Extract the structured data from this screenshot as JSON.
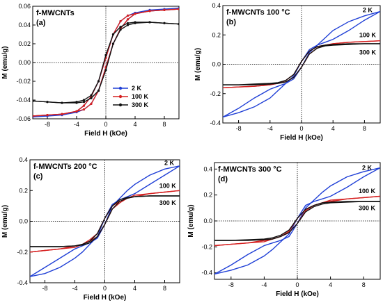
{
  "chart_data": [
    {
      "type": "line",
      "title": "f-MWCNTs",
      "panel_label": "(a)",
      "xlabel": "Field H (kOe)",
      "ylabel": "M (emu/g)",
      "xlim": [
        -10,
        10
      ],
      "ylim": [
        -0.06,
        0.06
      ],
      "xticks": [
        -8,
        -4,
        0,
        4,
        8
      ],
      "yticks": [
        -0.06,
        -0.04,
        -0.02,
        0.0,
        0.02,
        0.04,
        0.06
      ],
      "ytick_labels": [
        "-0.06",
        "-0.04",
        "-0.02",
        "0.00",
        "0.02",
        "0.04",
        "0.06"
      ],
      "legend": {
        "placement": "bottom-right",
        "entries": [
          "2 K",
          "100 K",
          "300 K"
        ]
      },
      "series": [
        {
          "name": "2 K",
          "color": "#1f3fd6",
          "x": [
            -10,
            -8,
            -6,
            -4,
            -3,
            -2,
            -1,
            0,
            1,
            2,
            3,
            4,
            6,
            8,
            10
          ],
          "y_up": [
            -0.058,
            -0.057,
            -0.056,
            -0.053,
            -0.05,
            -0.044,
            -0.03,
            -0.005,
            0.02,
            0.036,
            0.046,
            0.052,
            0.055,
            0.056,
            0.057
          ],
          "y_down": [
            -0.057,
            -0.056,
            -0.055,
            -0.052,
            -0.046,
            -0.036,
            -0.02,
            0.005,
            0.03,
            0.044,
            0.05,
            0.053,
            0.056,
            0.057,
            0.058
          ]
        },
        {
          "name": "100 K",
          "color": "#d62020",
          "x": [
            -10,
            -8,
            -6,
            -4,
            -3,
            -2,
            -1,
            0,
            1,
            2,
            3,
            4,
            6,
            8,
            10
          ],
          "y_up": [
            -0.057,
            -0.056,
            -0.055,
            -0.052,
            -0.05,
            -0.044,
            -0.03,
            -0.005,
            0.02,
            0.036,
            0.046,
            0.052,
            0.055,
            0.056,
            0.057
          ],
          "y_down": [
            -0.057,
            -0.056,
            -0.055,
            -0.052,
            -0.046,
            -0.036,
            -0.02,
            0.005,
            0.03,
            0.044,
            0.05,
            0.052,
            0.055,
            0.056,
            0.057
          ]
        },
        {
          "name": "300 K",
          "color": "#111111",
          "x": [
            -10,
            -8,
            -6,
            -4,
            -3,
            -2,
            -1,
            0,
            1,
            2,
            3,
            4,
            6,
            8,
            10
          ],
          "y_up": [
            -0.041,
            -0.042,
            -0.043,
            -0.043,
            -0.042,
            -0.038,
            -0.03,
            -0.008,
            0.02,
            0.035,
            0.04,
            0.042,
            0.043,
            0.042,
            0.041
          ],
          "y_down": [
            -0.041,
            -0.042,
            -0.043,
            -0.042,
            -0.04,
            -0.035,
            -0.02,
            0.008,
            0.03,
            0.038,
            0.042,
            0.043,
            0.043,
            0.042,
            0.041
          ]
        }
      ]
    },
    {
      "type": "line",
      "title": "f-MWCNTs 100 °C",
      "panel_label": "(b)",
      "xlabel": "Field H (kOe)",
      "ylabel": "M (emu/g)",
      "xlim": [
        -10,
        10
      ],
      "ylim": [
        -0.4,
        0.4
      ],
      "xticks": [
        -8,
        -4,
        0,
        4,
        8
      ],
      "yticks": [
        -0.4,
        -0.2,
        0.0,
        0.2,
        0.4
      ],
      "ytick_labels": [
        "-0.4",
        "-0.2",
        "0.0",
        "0.2",
        "0.4"
      ],
      "curve_labels": [
        "2 K",
        "100 K",
        "300 K"
      ],
      "series": [
        {
          "name": "2 K",
          "color": "#1f3fd6",
          "x": [
            -10,
            -8,
            -6,
            -4,
            -3,
            -2,
            -1,
            0,
            1,
            2,
            3,
            4,
            6,
            8,
            10
          ],
          "y_up": [
            -0.36,
            -0.3,
            -0.23,
            -0.17,
            -0.15,
            -0.13,
            -0.1,
            -0.02,
            0.08,
            0.13,
            0.18,
            0.23,
            0.29,
            0.33,
            0.36
          ],
          "y_down": [
            -0.36,
            -0.33,
            -0.29,
            -0.23,
            -0.18,
            -0.13,
            -0.08,
            0.02,
            0.1,
            0.13,
            0.15,
            0.17,
            0.23,
            0.3,
            0.36
          ]
        },
        {
          "name": "100 K",
          "color": "#d62020",
          "x": [
            -10,
            -8,
            -6,
            -4,
            -3,
            -2,
            -1,
            0,
            1,
            2,
            3,
            4,
            6,
            8,
            10
          ],
          "y_up": [
            -0.16,
            -0.155,
            -0.15,
            -0.14,
            -0.13,
            -0.12,
            -0.09,
            -0.02,
            0.07,
            0.11,
            0.13,
            0.14,
            0.15,
            0.155,
            0.16
          ],
          "y_down": [
            -0.16,
            -0.155,
            -0.15,
            -0.14,
            -0.13,
            -0.11,
            -0.07,
            0.02,
            0.09,
            0.12,
            0.13,
            0.14,
            0.15,
            0.155,
            0.16
          ]
        },
        {
          "name": "300 K",
          "color": "#111111",
          "x": [
            -10,
            -8,
            -6,
            -4,
            -3,
            -2,
            -1,
            0,
            1,
            2,
            3,
            4,
            6,
            8,
            10
          ],
          "y_up": [
            -0.14,
            -0.14,
            -0.14,
            -0.135,
            -0.13,
            -0.12,
            -0.09,
            -0.02,
            0.07,
            0.11,
            0.125,
            0.13,
            0.135,
            0.14,
            0.14
          ],
          "y_down": [
            -0.14,
            -0.14,
            -0.135,
            -0.13,
            -0.125,
            -0.11,
            -0.07,
            0.02,
            0.09,
            0.12,
            0.13,
            0.135,
            0.14,
            0.14,
            0.14
          ]
        }
      ]
    },
    {
      "type": "line",
      "title": "f-MWCNTs 200 °C",
      "panel_label": "(c)",
      "xlabel": "Field H (kOe)",
      "ylabel": "M (emu/g)",
      "xlim": [
        -10,
        10
      ],
      "ylim": [
        -0.4,
        0.4
      ],
      "xticks": [
        -8,
        -4,
        0,
        4,
        8
      ],
      "yticks": [
        -0.4,
        -0.2,
        0.0,
        0.2,
        0.4
      ],
      "ytick_labels": [
        "-0.4",
        "-0.2",
        "0.0",
        "0.2",
        "0.4"
      ],
      "curve_labels": [
        "2 K",
        "100 K",
        "300 K"
      ],
      "series": [
        {
          "name": "2 K",
          "color": "#1f3fd6",
          "x": [
            -10,
            -8,
            -6,
            -4,
            -3,
            -2,
            -1,
            0,
            1,
            2,
            3,
            4,
            6,
            8,
            10
          ],
          "y_up": [
            -0.36,
            -0.3,
            -0.24,
            -0.18,
            -0.16,
            -0.14,
            -0.11,
            -0.02,
            0.1,
            0.15,
            0.2,
            0.24,
            0.3,
            0.34,
            0.36
          ],
          "y_down": [
            -0.36,
            -0.34,
            -0.3,
            -0.24,
            -0.2,
            -0.15,
            -0.1,
            0.02,
            0.11,
            0.14,
            0.16,
            0.18,
            0.24,
            0.3,
            0.36
          ]
        },
        {
          "name": "100 K",
          "color": "#d62020",
          "x": [
            -10,
            -8,
            -6,
            -4,
            -3,
            -2,
            -1,
            0,
            1,
            2,
            3,
            4,
            6,
            8,
            10
          ],
          "y_up": [
            -0.2,
            -0.19,
            -0.18,
            -0.16,
            -0.15,
            -0.13,
            -0.1,
            -0.02,
            0.08,
            0.12,
            0.15,
            0.17,
            0.18,
            0.19,
            0.2
          ],
          "y_down": [
            -0.2,
            -0.19,
            -0.18,
            -0.17,
            -0.15,
            -0.12,
            -0.08,
            0.02,
            0.1,
            0.13,
            0.15,
            0.16,
            0.18,
            0.19,
            0.2
          ]
        },
        {
          "name": "300 K",
          "color": "#111111",
          "x": [
            -10,
            -8,
            -6,
            -4,
            -3,
            -2,
            -1,
            0,
            1,
            2,
            3,
            4,
            6,
            8,
            10
          ],
          "y_up": [
            -0.165,
            -0.165,
            -0.165,
            -0.16,
            -0.155,
            -0.14,
            -0.1,
            -0.02,
            0.08,
            0.13,
            0.15,
            0.16,
            0.165,
            0.165,
            0.165
          ],
          "y_down": [
            -0.165,
            -0.165,
            -0.165,
            -0.16,
            -0.15,
            -0.13,
            -0.08,
            0.02,
            0.1,
            0.14,
            0.155,
            0.16,
            0.165,
            0.165,
            0.165
          ]
        }
      ]
    },
    {
      "type": "line",
      "title": "f-MWCNTs 300 °C",
      "panel_label": "(d)",
      "xlabel": "Field H (kOe)",
      "ylabel": "M (emu/g)",
      "xlim": [
        -10,
        10
      ],
      "ylim": [
        -0.45,
        0.45
      ],
      "xticks": [
        -8,
        -4,
        0,
        4,
        8
      ],
      "yticks": [
        -0.4,
        -0.2,
        0.0,
        0.2,
        0.4
      ],
      "ytick_labels": [
        "-0.4",
        "-0.2",
        "0.0",
        "0.2",
        "0.4"
      ],
      "curve_labels": [
        "2 K",
        "100 K",
        "300 K"
      ],
      "series": [
        {
          "name": "2 K",
          "color": "#1f3fd6",
          "x": [
            -10,
            -8,
            -6,
            -4,
            -3,
            -2,
            -1,
            0,
            1,
            2,
            3,
            4,
            6,
            8,
            10
          ],
          "y_up": [
            -0.41,
            -0.34,
            -0.26,
            -0.19,
            -0.17,
            -0.15,
            -0.12,
            -0.02,
            0.1,
            0.16,
            0.22,
            0.27,
            0.34,
            0.38,
            0.41
          ],
          "y_down": [
            -0.41,
            -0.38,
            -0.34,
            -0.27,
            -0.22,
            -0.16,
            -0.1,
            0.02,
            0.12,
            0.15,
            0.17,
            0.19,
            0.26,
            0.34,
            0.41
          ]
        },
        {
          "name": "100 K",
          "color": "#d62020",
          "x": [
            -10,
            -8,
            -6,
            -4,
            -3,
            -2,
            -1,
            0,
            1,
            2,
            3,
            4,
            6,
            8,
            10
          ],
          "y_up": [
            -0.19,
            -0.18,
            -0.17,
            -0.15,
            -0.14,
            -0.12,
            -0.09,
            -0.02,
            0.08,
            0.12,
            0.14,
            0.16,
            0.17,
            0.18,
            0.19
          ],
          "y_down": [
            -0.19,
            -0.18,
            -0.17,
            -0.16,
            -0.14,
            -0.12,
            -0.08,
            0.02,
            0.09,
            0.12,
            0.14,
            0.15,
            0.17,
            0.18,
            0.19
          ]
        },
        {
          "name": "300 K",
          "color": "#111111",
          "x": [
            -10,
            -8,
            -6,
            -4,
            -3,
            -2,
            -1,
            0,
            1,
            2,
            3,
            4,
            6,
            8,
            10
          ],
          "y_up": [
            -0.15,
            -0.15,
            -0.15,
            -0.145,
            -0.14,
            -0.12,
            -0.09,
            -0.02,
            0.07,
            0.11,
            0.13,
            0.14,
            0.145,
            0.15,
            0.15
          ],
          "y_down": [
            -0.15,
            -0.15,
            -0.145,
            -0.14,
            -0.13,
            -0.11,
            -0.07,
            0.02,
            0.09,
            0.12,
            0.14,
            0.145,
            0.15,
            0.15,
            0.15
          ]
        }
      ]
    }
  ]
}
